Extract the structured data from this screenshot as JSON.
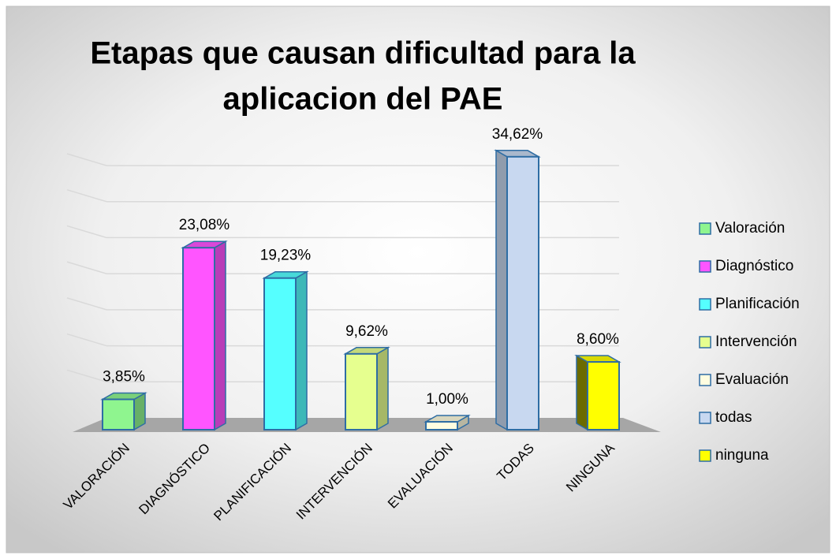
{
  "chart_data": {
    "type": "bar3d",
    "title": [
      "Etapas que causan dificultad para la",
      "aplicacion del PAE"
    ],
    "categories": [
      "VALORACIÓN",
      "DIAGNÓSTICO",
      "PLANIFICACIÓN",
      "INTERVENCIÓN",
      "EVALUACIÓN",
      "TODAS",
      "NINGUNA"
    ],
    "values": [
      3.85,
      23.08,
      19.23,
      9.62,
      1.0,
      34.62,
      8.6
    ],
    "value_labels": [
      "3,85%",
      "23,08%",
      "19,23%",
      "9,62%",
      "1,00%",
      "34,62%",
      "8,60%"
    ],
    "colors": [
      "#8ff58f",
      "#ff55ff",
      "#55ffff",
      "#e6ff8f",
      "#fffde0",
      "#c8d8f0",
      "#ffff00"
    ],
    "legend": [
      "Valoración",
      "Diagnóstico",
      "Planificación",
      "Intervención",
      "Evaluación",
      "todas",
      "ninguna"
    ],
    "ylim": [
      0,
      35
    ],
    "yticks": [
      0,
      5,
      10,
      15,
      20,
      25,
      30,
      35
    ],
    "tick_labels": false,
    "grid": true
  }
}
